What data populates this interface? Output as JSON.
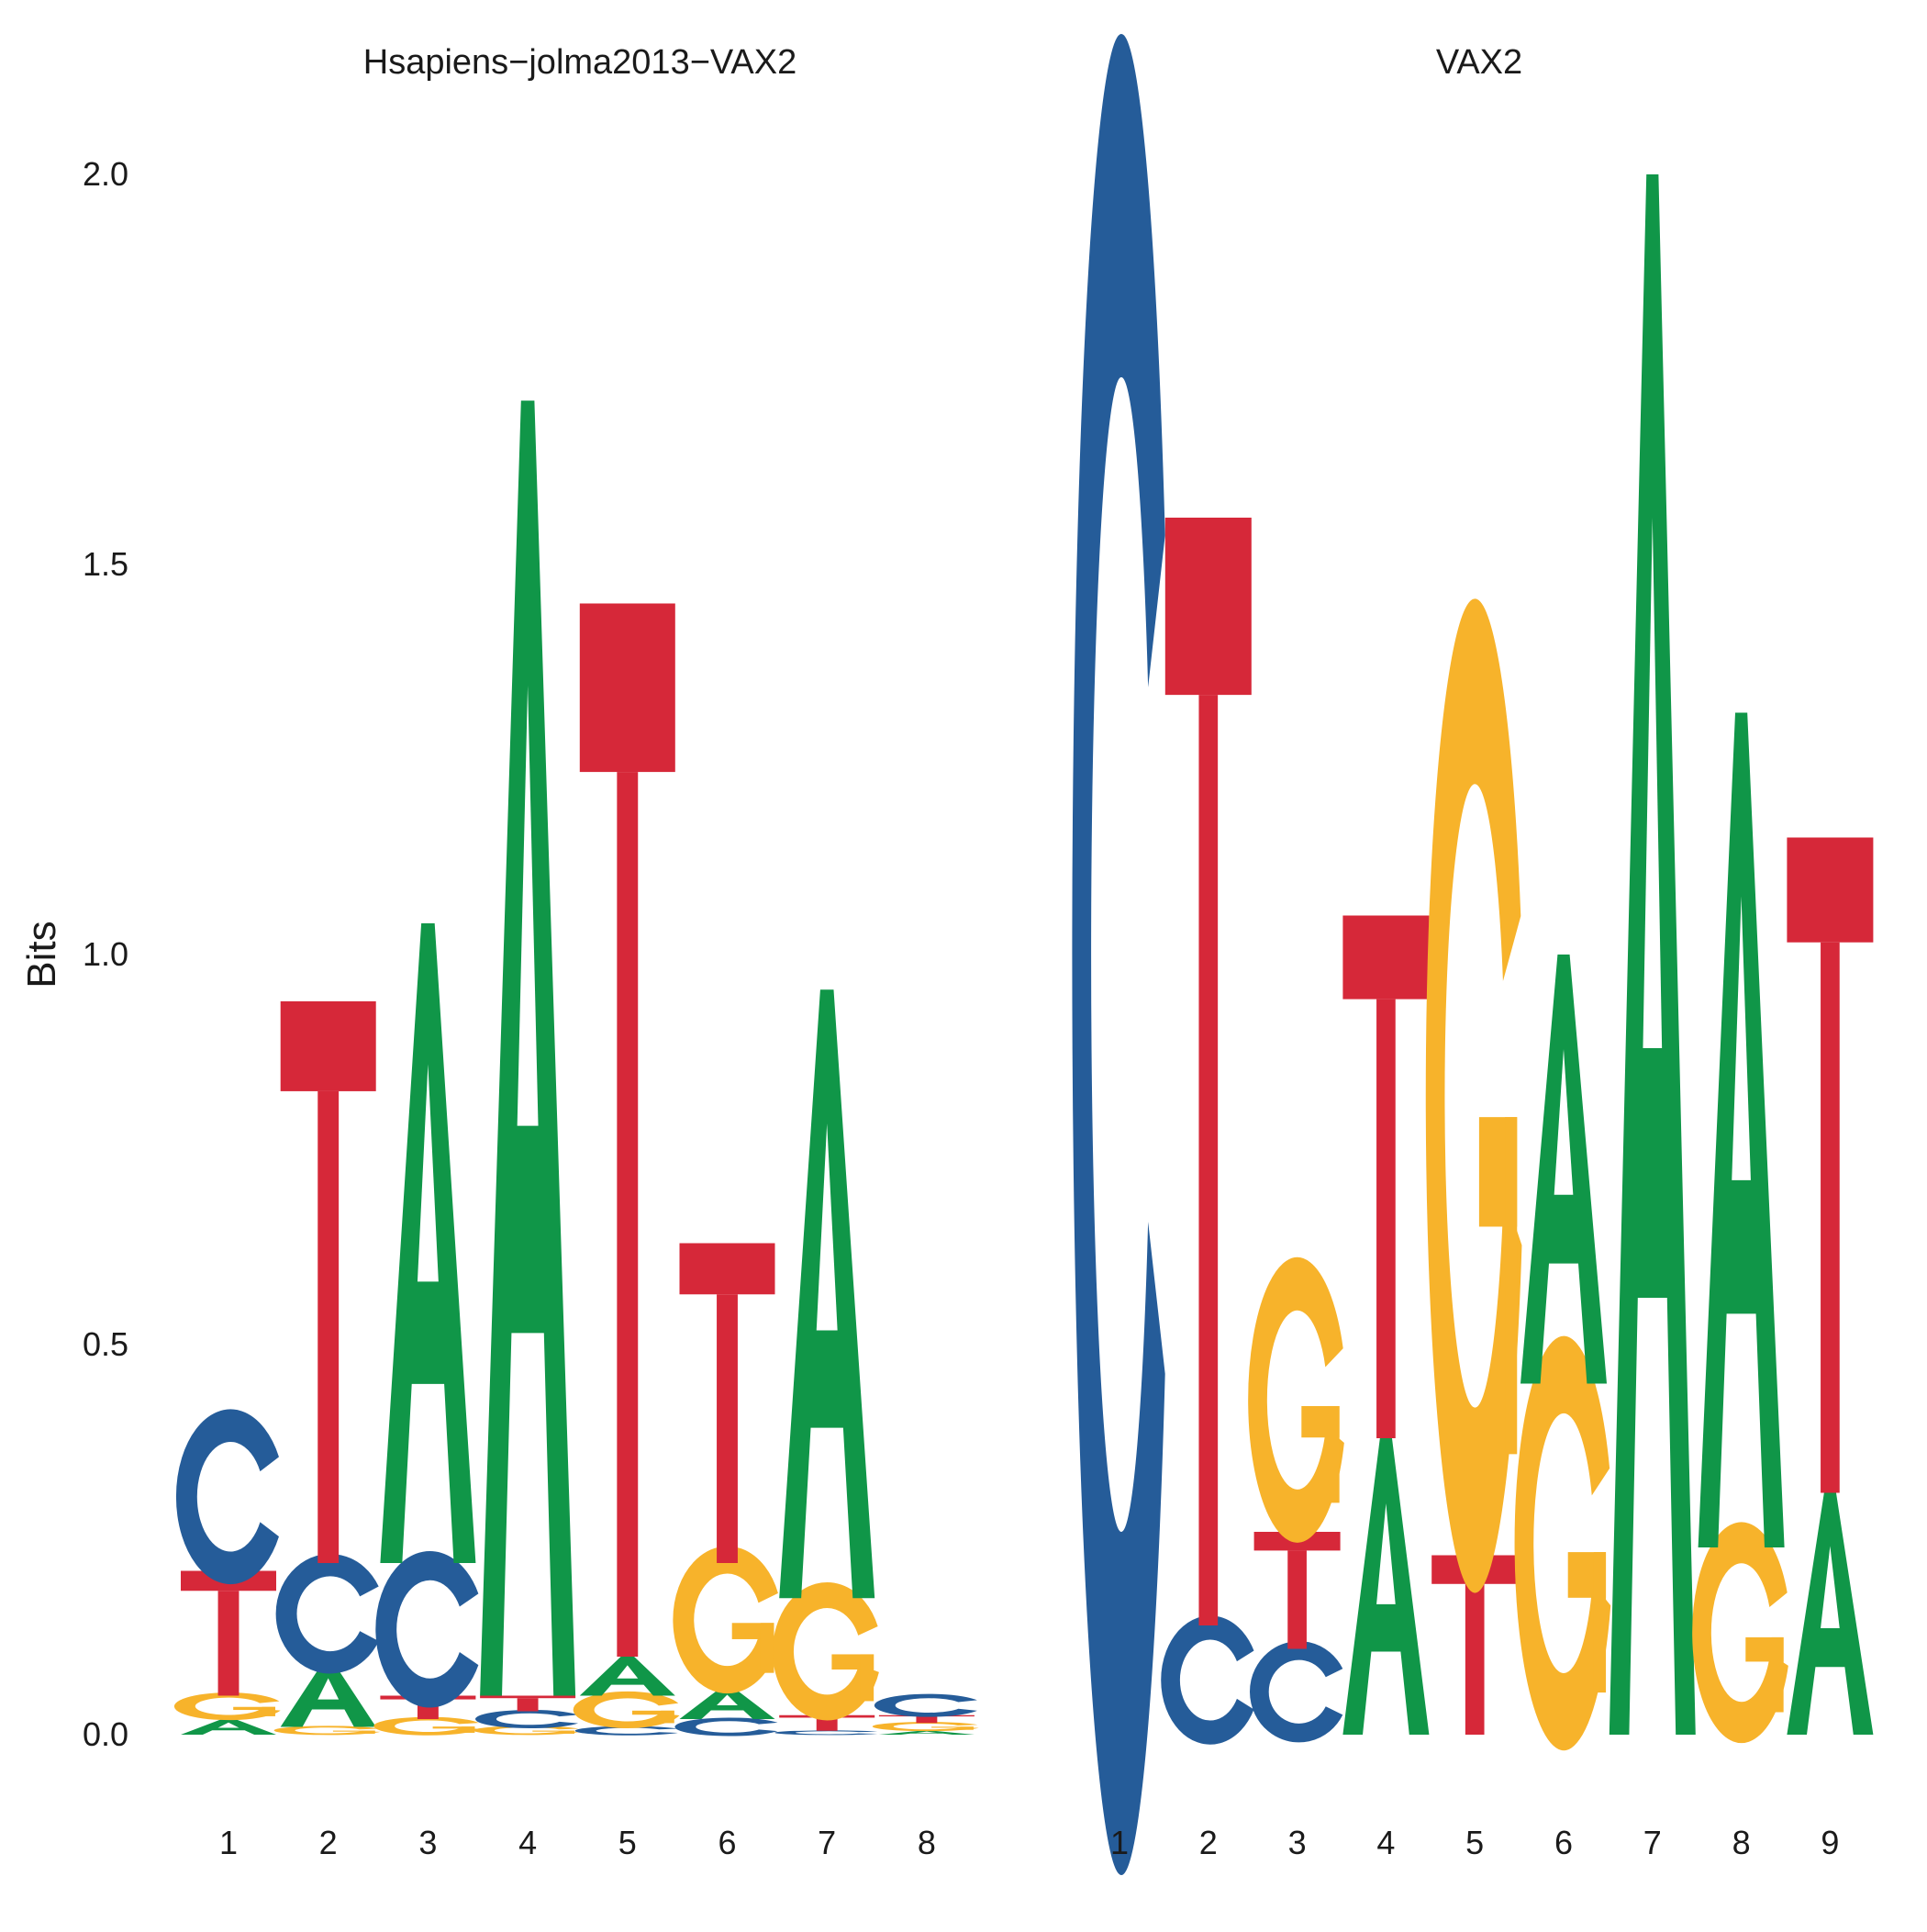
{
  "chart_data": [
    {
      "type": "sequence-logo",
      "title": "Hsapiens−jolma2013−VAX2",
      "ylabel": "Bits",
      "ylim": [
        0,
        2
      ],
      "yticks": [
        "0.0",
        "0.5",
        "1.0",
        "1.5",
        "2.0"
      ],
      "positions": [
        "1",
        "2",
        "3",
        "4",
        "5",
        "6",
        "7",
        "8"
      ],
      "columns": [
        [
          {
            "letter": "A",
            "bits": 0.02
          },
          {
            "letter": "G",
            "bits": 0.03
          },
          {
            "letter": "T",
            "bits": 0.16
          },
          {
            "letter": "C",
            "bits": 0.19
          }
        ],
        [
          {
            "letter": "G",
            "bits": 0.01
          },
          {
            "letter": "A",
            "bits": 0.08
          },
          {
            "letter": "C",
            "bits": 0.13
          },
          {
            "letter": "T",
            "bits": 0.72
          }
        ],
        [
          {
            "letter": "G",
            "bits": 0.02
          },
          {
            "letter": "T",
            "bits": 0.03
          },
          {
            "letter": "C",
            "bits": 0.17
          },
          {
            "letter": "A",
            "bits": 0.82
          }
        ],
        [
          {
            "letter": "G",
            "bits": 0.01
          },
          {
            "letter": "C",
            "bits": 0.02
          },
          {
            "letter": "T",
            "bits": 0.02
          },
          {
            "letter": "A",
            "bits": 1.66
          }
        ],
        [
          {
            "letter": "C",
            "bits": 0.01
          },
          {
            "letter": "G",
            "bits": 0.04
          },
          {
            "letter": "A",
            "bits": 0.05
          },
          {
            "letter": "T",
            "bits": 1.35
          }
        ],
        [
          {
            "letter": "C",
            "bits": 0.02
          },
          {
            "letter": "A",
            "bits": 0.04
          },
          {
            "letter": "G",
            "bits": 0.16
          },
          {
            "letter": "T",
            "bits": 0.41
          }
        ],
        [
          {
            "letter": "C",
            "bits": 0.005
          },
          {
            "letter": "T",
            "bits": 0.02
          },
          {
            "letter": "G",
            "bits": 0.15
          },
          {
            "letter": "A",
            "bits": 0.78
          }
        ],
        [
          {
            "letter": "A",
            "bits": 0.005
          },
          {
            "letter": "G",
            "bits": 0.01
          },
          {
            "letter": "T",
            "bits": 0.01
          },
          {
            "letter": "C",
            "bits": 0.025
          }
        ]
      ]
    },
    {
      "type": "sequence-logo",
      "title": "VAX2",
      "ylabel": "",
      "ylim": [
        0,
        2
      ],
      "positions": [
        "1",
        "2",
        "3",
        "4",
        "5",
        "6",
        "7",
        "8",
        "9"
      ],
      "columns": [
        [
          {
            "letter": "C",
            "bits": 2.0
          }
        ],
        [
          {
            "letter": "C",
            "bits": 0.14
          },
          {
            "letter": "T",
            "bits": 1.42
          }
        ],
        [
          {
            "letter": "C",
            "bits": 0.11
          },
          {
            "letter": "T",
            "bits": 0.15
          },
          {
            "letter": "G",
            "bits": 0.31
          }
        ],
        [
          {
            "letter": "A",
            "bits": 0.38
          },
          {
            "letter": "T",
            "bits": 0.67
          }
        ],
        [
          {
            "letter": "T",
            "bits": 0.23
          },
          {
            "letter": "G",
            "bits": 1.08
          }
        ],
        [
          {
            "letter": "G",
            "bits": 0.45
          },
          {
            "letter": "A",
            "bits": 0.55
          }
        ],
        [
          {
            "letter": "A",
            "bits": 2.0
          }
        ],
        [
          {
            "letter": "G",
            "bits": 0.24
          },
          {
            "letter": "A",
            "bits": 1.07
          }
        ],
        [
          {
            "letter": "A",
            "bits": 0.31
          },
          {
            "letter": "T",
            "bits": 0.84
          }
        ]
      ]
    }
  ],
  "colors": {
    "A": "#109648",
    "C": "#255C99",
    "G": "#F7B32B",
    "T": "#D62839"
  }
}
